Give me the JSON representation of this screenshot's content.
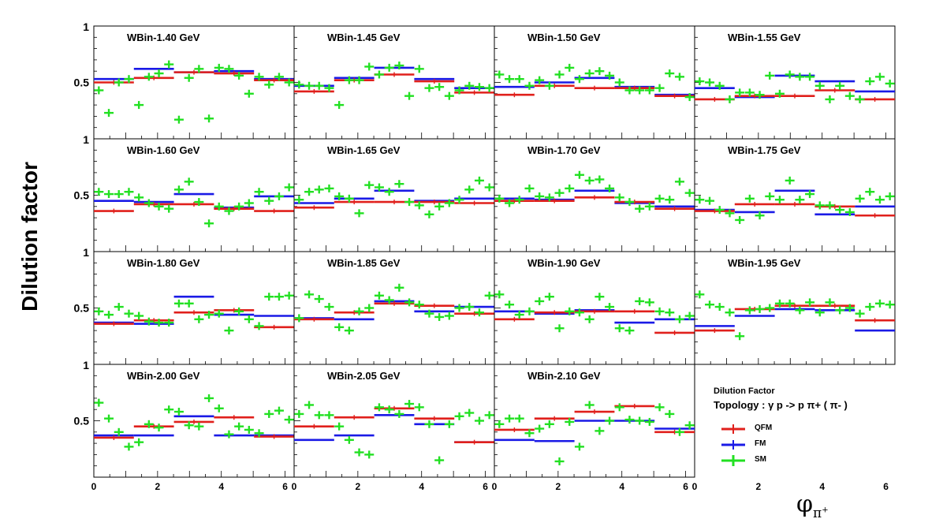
{
  "y_axis_label": "Dilution factor",
  "x_axis_label": {
    "base": "φ",
    "sub": "π",
    "sup": "+"
  },
  "legend": {
    "title": "Dilution Factor",
    "topology": "Topology :  γ p -> p  π+ ( π- )",
    "entries": [
      {
        "label": "QFM",
        "color": "#e0201c"
      },
      {
        "label": "FM",
        "color": "#1a1ae6"
      },
      {
        "label": "SM",
        "color": "#22e022"
      }
    ]
  },
  "colors": {
    "QFM": "#e0201c",
    "FM": "#1a1ae6",
    "SM": "#22e022"
  },
  "chart_data": {
    "type": "scatter",
    "xlim": [
      0,
      6.283
    ],
    "ylim": [
      0,
      1
    ],
    "x_ticks": [
      "0",
      "2",
      "4",
      "6"
    ],
    "y_ticks": [
      "1",
      "0.5"
    ],
    "hist_bins": 5,
    "sm_x": [
      0.157,
      0.471,
      0.785,
      1.1,
      1.414,
      1.728,
      2.042,
      2.356,
      2.67,
      2.985,
      3.299,
      3.613,
      3.927,
      4.241,
      4.555,
      4.869,
      5.184,
      5.498,
      5.812,
      6.126
    ],
    "panels": [
      {
        "label": "WBin-1.40 GeV",
        "qfm": [
          0.5,
          0.54,
          0.59,
          0.58,
          0.52
        ],
        "fm": [
          0.53,
          0.62,
          0.59,
          0.6,
          0.53
        ],
        "sm": [
          0.43,
          0.23,
          0.5,
          0.53,
          0.3,
          0.55,
          0.58,
          0.66,
          0.17,
          0.54,
          0.62,
          0.18,
          0.63,
          0.62,
          0.56,
          0.4,
          0.55,
          0.48,
          0.55,
          0.5
        ]
      },
      {
        "label": "WBin-1.45 GeV",
        "qfm": [
          0.42,
          0.52,
          0.57,
          0.51,
          0.41
        ],
        "fm": [
          0.47,
          0.54,
          0.63,
          0.53,
          0.45
        ],
        "sm": [
          0.48,
          0.47,
          0.47,
          0.45,
          0.3,
          0.52,
          0.52,
          0.64,
          0.57,
          0.63,
          0.65,
          0.38,
          0.62,
          0.45,
          0.46,
          0.38,
          0.43,
          0.47,
          0.46,
          0.45
        ]
      },
      {
        "label": "WBin-1.50 GeV",
        "qfm": [
          0.39,
          0.47,
          0.45,
          0.45,
          0.38
        ],
        "fm": [
          0.46,
          0.5,
          0.54,
          0.46,
          0.39
        ],
        "sm": [
          0.57,
          0.53,
          0.53,
          0.47,
          0.52,
          0.47,
          0.57,
          0.63,
          0.53,
          0.58,
          0.6,
          0.56,
          0.5,
          0.43,
          0.43,
          0.43,
          0.45,
          0.58,
          0.55,
          0.37
        ]
      },
      {
        "label": "WBin-1.55 GeV",
        "qfm": [
          0.35,
          0.38,
          0.38,
          0.43,
          0.35
        ],
        "fm": [
          0.45,
          0.37,
          0.56,
          0.51,
          0.42
        ],
        "sm": [
          0.51,
          0.5,
          0.47,
          0.35,
          0.41,
          0.41,
          0.39,
          0.56,
          0.4,
          0.57,
          0.55,
          0.55,
          0.47,
          0.35,
          0.47,
          0.38,
          0.35,
          0.51,
          0.55,
          0.49
        ]
      },
      {
        "label": "WBin-1.60 GeV",
        "qfm": [
          0.36,
          0.42,
          0.42,
          0.38,
          0.36
        ],
        "fm": [
          0.45,
          0.44,
          0.51,
          0.39,
          0.49
        ],
        "sm": [
          0.53,
          0.51,
          0.51,
          0.53,
          0.48,
          0.43,
          0.4,
          0.38,
          0.55,
          0.62,
          0.44,
          0.25,
          0.4,
          0.36,
          0.4,
          0.43,
          0.53,
          0.45,
          0.49,
          0.57
        ]
      },
      {
        "label": "WBin-1.65 GeV",
        "qfm": [
          0.39,
          0.44,
          0.44,
          0.44,
          0.43
        ],
        "fm": [
          0.43,
          0.47,
          0.54,
          0.45,
          0.47
        ],
        "sm": [
          0.46,
          0.53,
          0.55,
          0.56,
          0.49,
          0.47,
          0.34,
          0.59,
          0.57,
          0.53,
          0.6,
          0.44,
          0.41,
          0.33,
          0.4,
          0.43,
          0.46,
          0.55,
          0.63,
          0.57
        ]
      },
      {
        "label": "WBin-1.70 GeV",
        "qfm": [
          0.45,
          0.45,
          0.48,
          0.44,
          0.38
        ],
        "fm": [
          0.47,
          0.46,
          0.54,
          0.43,
          0.4
        ],
        "sm": [
          0.47,
          0.43,
          0.46,
          0.56,
          0.49,
          0.48,
          0.52,
          0.56,
          0.68,
          0.63,
          0.64,
          0.56,
          0.48,
          0.44,
          0.38,
          0.4,
          0.47,
          0.46,
          0.62,
          0.52
        ]
      },
      {
        "label": "WBin-1.75 GeV",
        "qfm": [
          0.36,
          0.42,
          0.42,
          0.4,
          0.32
        ],
        "fm": [
          0.37,
          0.35,
          0.54,
          0.33,
          0.4
        ],
        "sm": [
          0.46,
          0.45,
          0.37,
          0.34,
          0.28,
          0.47,
          0.32,
          0.49,
          0.46,
          0.63,
          0.46,
          0.51,
          0.41,
          0.41,
          0.37,
          0.35,
          0.47,
          0.53,
          0.46,
          0.49
        ]
      },
      {
        "label": "WBin-1.80 GeV",
        "qfm": [
          0.36,
          0.39,
          0.46,
          0.48,
          0.33
        ],
        "fm": [
          0.37,
          0.36,
          0.6,
          0.44,
          0.43
        ],
        "sm": [
          0.47,
          0.44,
          0.51,
          0.45,
          0.43,
          0.38,
          0.37,
          0.37,
          0.54,
          0.54,
          0.4,
          0.44,
          0.45,
          0.3,
          0.47,
          0.4,
          0.34,
          0.6,
          0.6,
          0.61
        ]
      },
      {
        "label": "WBin-1.85 GeV",
        "qfm": [
          0.4,
          0.46,
          0.54,
          0.52,
          0.45
        ],
        "fm": [
          0.41,
          0.4,
          0.56,
          0.47,
          0.51
        ],
        "sm": [
          0.41,
          0.62,
          0.58,
          0.51,
          0.33,
          0.3,
          0.47,
          0.5,
          0.61,
          0.57,
          0.68,
          0.55,
          0.53,
          0.45,
          0.42,
          0.43,
          0.5,
          0.51,
          0.46,
          0.61
        ]
      },
      {
        "label": "WBin-1.90 GeV",
        "qfm": [
          0.4,
          0.46,
          0.47,
          0.47,
          0.28
        ],
        "fm": [
          0.47,
          0.45,
          0.48,
          0.37,
          0.4
        ],
        "sm": [
          0.62,
          0.53,
          0.44,
          0.47,
          0.56,
          0.6,
          0.32,
          0.47,
          0.46,
          0.4,
          0.6,
          0.51,
          0.32,
          0.3,
          0.56,
          0.55,
          0.47,
          0.46,
          0.4,
          0.43
        ]
      },
      {
        "label": "WBin-1.95 GeV",
        "qfm": [
          0.3,
          0.49,
          0.52,
          0.52,
          0.39
        ],
        "fm": [
          0.34,
          0.43,
          0.49,
          0.48,
          0.3
        ],
        "sm": [
          0.62,
          0.53,
          0.51,
          0.46,
          0.25,
          0.48,
          0.49,
          0.5,
          0.54,
          0.54,
          0.48,
          0.55,
          0.46,
          0.55,
          0.48,
          0.5,
          0.45,
          0.51,
          0.54,
          0.53
        ]
      },
      {
        "label": "WBin-2.00 GeV",
        "qfm": [
          0.35,
          0.45,
          0.49,
          0.53,
          0.36
        ],
        "fm": [
          0.37,
          0.37,
          0.54,
          0.37,
          0.37
        ],
        "sm": [
          0.66,
          0.52,
          0.4,
          0.27,
          0.31,
          0.47,
          0.44,
          0.6,
          0.58,
          0.46,
          0.45,
          0.7,
          0.61,
          0.38,
          0.45,
          0.42,
          0.39,
          0.56,
          0.59,
          0.51
        ]
      },
      {
        "label": "WBin-2.05 GeV",
        "qfm": [
          0.45,
          0.53,
          0.61,
          0.52,
          0.31
        ],
        "fm": [
          0.33,
          0.37,
          0.55,
          0.47,
          0.31
        ],
        "sm": [
          0.56,
          0.64,
          0.55,
          0.55,
          0.45,
          0.33,
          0.22,
          0.2,
          0.62,
          0.6,
          0.56,
          0.65,
          0.62,
          0.47,
          0.15,
          0.47,
          0.54,
          0.57,
          0.5,
          0.55
        ]
      },
      {
        "label": "WBin-2.10 GeV",
        "qfm": [
          0.42,
          0.52,
          0.58,
          0.63,
          0.4
        ],
        "fm": [
          0.33,
          0.32,
          0.5,
          0.5,
          0.43
        ],
        "sm": [
          0.47,
          0.52,
          0.52,
          0.39,
          0.43,
          0.47,
          0.14,
          0.49,
          0.27,
          0.64,
          0.41,
          0.5,
          0.62,
          0.51,
          0.5,
          0.49,
          0.62,
          0.56,
          0.4,
          0.46
        ]
      }
    ]
  }
}
